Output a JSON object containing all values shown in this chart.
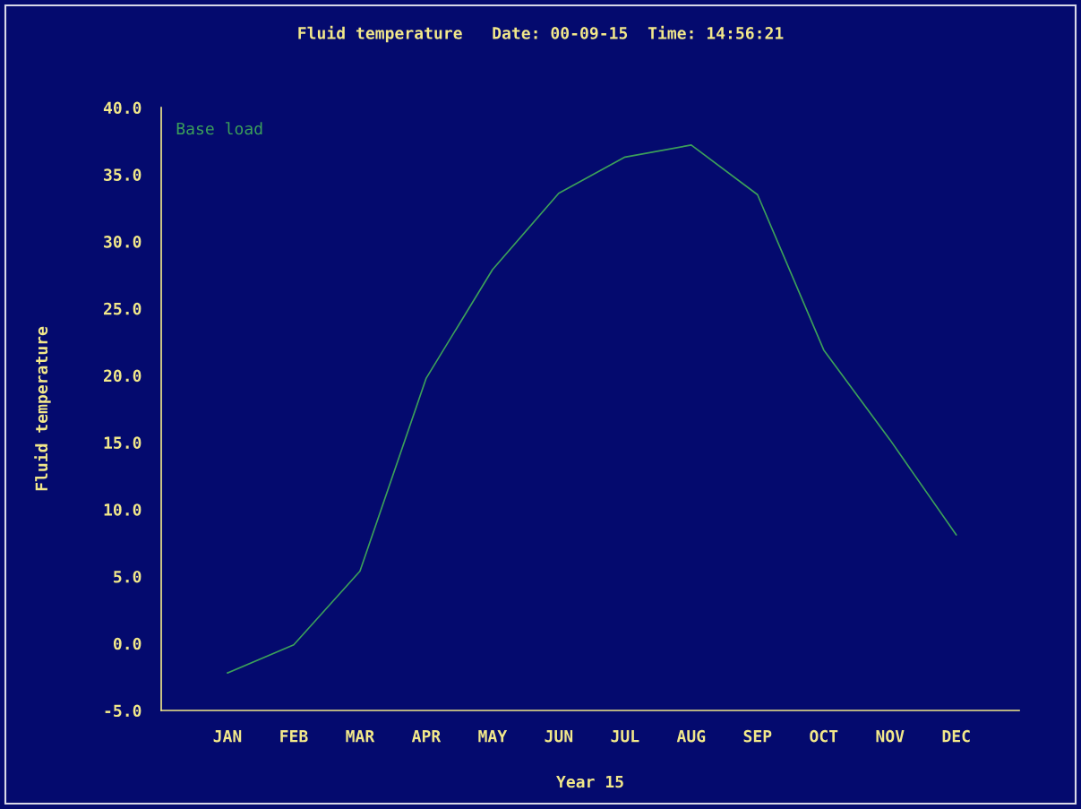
{
  "chart_data": {
    "type": "line",
    "title": "Fluid temperature   Date: 00-09-15  Time: 14:56:21",
    "xlabel": "Year 15",
    "ylabel": "Fluid temperature",
    "categories": [
      "JAN",
      "FEB",
      "MAR",
      "APR",
      "MAY",
      "JUN",
      "JUL",
      "AUG",
      "SEP",
      "OCT",
      "NOV",
      "DEC"
    ],
    "series": [
      {
        "name": "Base load",
        "color": "#3ca05a",
        "values": [
          -2.2,
          -0.1,
          5.4,
          19.8,
          27.9,
          33.6,
          36.3,
          37.2,
          33.5,
          21.9,
          15.2,
          8.1
        ]
      }
    ],
    "ylim": [
      -5,
      40
    ],
    "yticks": [
      {
        "value": -5,
        "label": "-5.0"
      },
      {
        "value": 0,
        "label": "0.0"
      },
      {
        "value": 5,
        "label": "5.0"
      },
      {
        "value": 10,
        "label": "10.0"
      },
      {
        "value": 15,
        "label": "15.0"
      },
      {
        "value": 20,
        "label": "20.0"
      },
      {
        "value": 25,
        "label": "25.0"
      },
      {
        "value": 30,
        "label": "30.0"
      },
      {
        "value": 35,
        "label": "35.0"
      },
      {
        "value": 40,
        "label": "40.0"
      }
    ],
    "legend": "top left",
    "grid": false,
    "marker": "none",
    "line_style": "solid"
  }
}
